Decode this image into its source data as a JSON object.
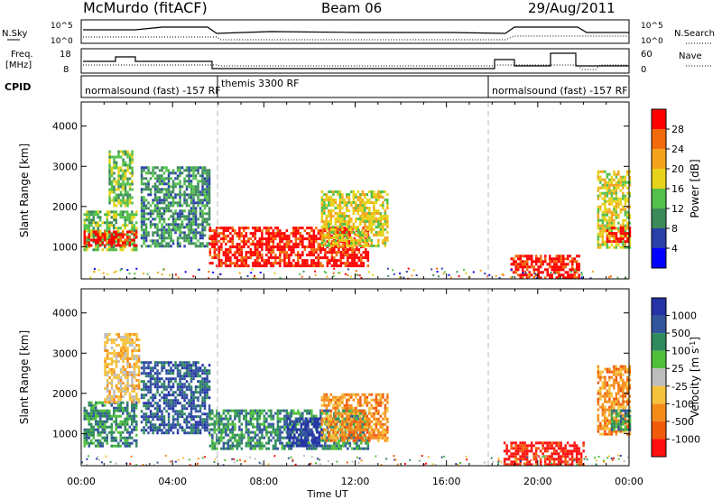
{
  "header": {
    "title": "McMurdo (fitACF)",
    "beam": "Beam 06",
    "date": "29/Aug/2011"
  },
  "top_panel_labels": {
    "nsky": "N.Sky",
    "nsearch": "N.Search",
    "freq_line1": "Freq.",
    "freq_line2": "[MHz]",
    "nave": "Nave",
    "cpid": "CPID",
    "nsky_ticks": [
      "10^5",
      "10^0"
    ],
    "nsearch_ticks": [
      "10^5",
      "10^0"
    ],
    "freq_ticks": [
      "18",
      "8"
    ],
    "nave_ticks": [
      "60",
      "0"
    ]
  },
  "cpid_segments": [
    {
      "label": "normalsound (fast) -157 RF",
      "start_hour": 0,
      "end_hour": 6
    },
    {
      "label": "themis 3300 RF",
      "start_hour": 6,
      "end_hour": 18
    },
    {
      "label": "normalsound (fast) -157 RF",
      "start_hour": 18,
      "end_hour": 24
    }
  ],
  "colors": {
    "power": [
      "#0000ff",
      "#2a3fa8",
      "#3d8b5a",
      "#52c04a",
      "#e6d21a",
      "#f5a31c",
      "#f26a0c",
      "#ff0000"
    ],
    "velocity": [
      "#2533a6",
      "#33559c",
      "#2f8a5e",
      "#4fbf3c",
      "#bdbdbd",
      "#f5c23c",
      "#f58c1a",
      "#f25a0c",
      "#ff1010"
    ]
  },
  "chart_data": [
    {
      "type": "heatmap",
      "name": "power",
      "xlabel": "",
      "ylabel": "Slant Range [km]",
      "xlim": [
        0,
        24
      ],
      "ylim": [
        200,
        4600
      ],
      "yticks": [
        "1000",
        "2000",
        "3000",
        "4000"
      ],
      "colorbar_label": "Power [dB]",
      "colorbar_ticks": [
        "4",
        "8",
        "12",
        "16",
        "20",
        "24",
        "28"
      ],
      "colorbar_range": [
        0,
        32
      ],
      "regions": [
        {
          "t0": 0.1,
          "t1": 2.4,
          "r0": 900,
          "r1": 1900,
          "level": 3
        },
        {
          "t0": 0.1,
          "t1": 2.4,
          "r0": 1000,
          "r1": 1400,
          "level": 7
        },
        {
          "t0": 1.2,
          "t1": 2.2,
          "r0": 2000,
          "r1": 3400,
          "level": 3
        },
        {
          "t0": 2.6,
          "t1": 5.6,
          "r0": 1000,
          "r1": 3000,
          "level": 2
        },
        {
          "t0": 5.6,
          "t1": 12.6,
          "r0": 500,
          "r1": 1500,
          "level": 7
        },
        {
          "t0": 10.5,
          "t1": 13.4,
          "r0": 1000,
          "r1": 2400,
          "level": 4
        },
        {
          "t0": 18.8,
          "t1": 21.8,
          "r0": 250,
          "r1": 800,
          "level": 7
        },
        {
          "t0": 22.6,
          "t1": 24,
          "r0": 1000,
          "r1": 2900,
          "level": 4
        },
        {
          "t0": 23.0,
          "t1": 24,
          "r0": 1100,
          "r1": 1500,
          "level": 7
        }
      ]
    },
    {
      "type": "heatmap",
      "name": "velocity",
      "xlabel": "Time UT",
      "ylabel": "Slant Range [km]",
      "xlim": [
        0,
        24
      ],
      "ylim": [
        200,
        4600
      ],
      "yticks": [
        "1000",
        "2000",
        "3000",
        "4000"
      ],
      "xticks": [
        "00:00",
        "04:00",
        "08:00",
        "12:00",
        "16:00",
        "20:00",
        "00:00"
      ],
      "colorbar_label": "Velocity [m s^-1]",
      "colorbar_ticks": [
        "1000",
        "500",
        "100",
        "25",
        "-25",
        "-100",
        "-500",
        "-1000"
      ],
      "regions": [
        {
          "t0": 0.1,
          "t1": 2.4,
          "r0": 700,
          "r1": 1800,
          "level": 2
        },
        {
          "t0": 1.0,
          "t1": 2.5,
          "r0": 1800,
          "r1": 3500,
          "level": 5
        },
        {
          "t0": 2.6,
          "t1": 5.6,
          "r0": 1000,
          "r1": 2800,
          "level": 1
        },
        {
          "t0": 5.6,
          "t1": 12.6,
          "r0": 600,
          "r1": 1600,
          "level": 2
        },
        {
          "t0": 9.0,
          "t1": 10.5,
          "r0": 700,
          "r1": 1400,
          "level": 0
        },
        {
          "t0": 10.5,
          "t1": 13.4,
          "r0": 800,
          "r1": 2000,
          "level": 6
        },
        {
          "t0": 18.5,
          "t1": 22.0,
          "r0": 250,
          "r1": 800,
          "level": 8
        },
        {
          "t0": 22.6,
          "t1": 24,
          "r0": 1000,
          "r1": 2700,
          "level": 6
        },
        {
          "t0": 23.2,
          "t1": 24,
          "r0": 1100,
          "r1": 1600,
          "level": 2
        }
      ]
    }
  ]
}
